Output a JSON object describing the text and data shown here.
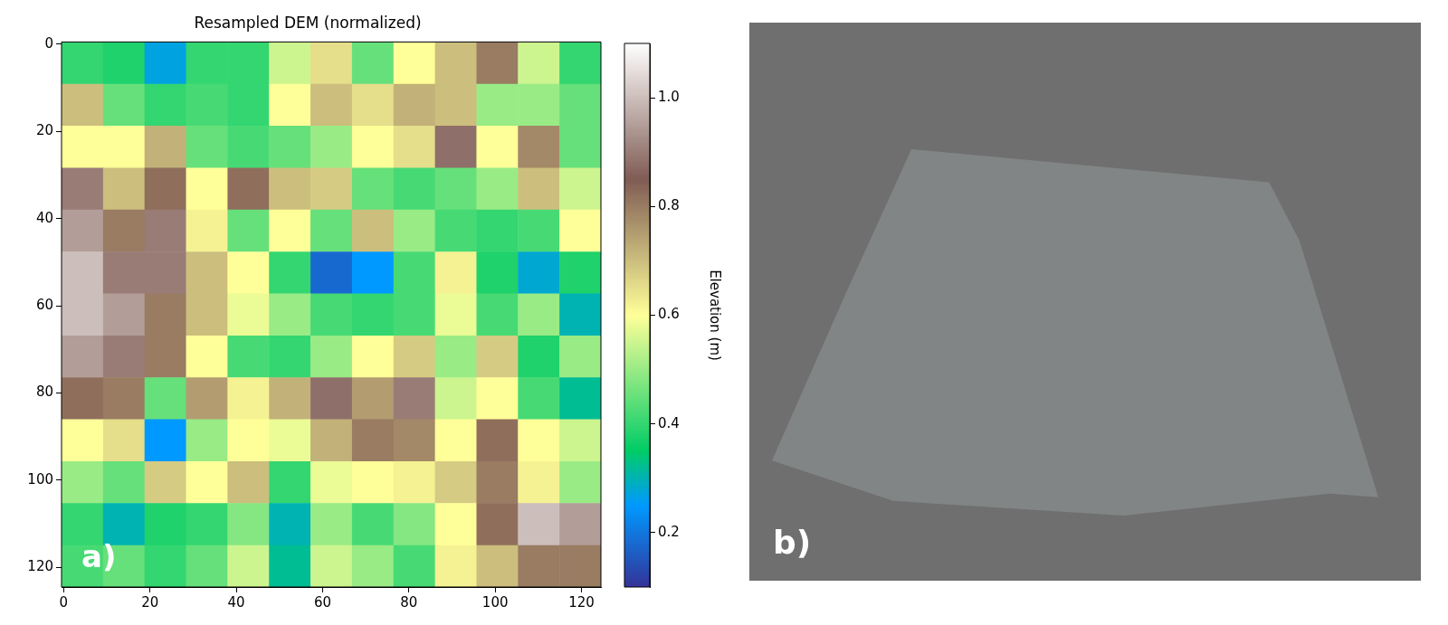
{
  "chart_data": {
    "type": "heatmap",
    "title": "Resampled DEM (normalized)",
    "clabel": "Elevation (m)",
    "xlim": [
      -0.5,
      124.5
    ],
    "xticks": [
      0,
      20,
      40,
      60,
      80,
      100,
      120
    ],
    "ylim": [
      124.5,
      -0.5
    ],
    "yticks": [
      0,
      20,
      40,
      60,
      80,
      100,
      120
    ],
    "clim": [
      0.1,
      1.1
    ],
    "cticks": [
      0.2,
      0.4,
      0.6,
      0.8,
      {
        "value": 1,
        "label": "1.0"
      }
    ],
    "annotations": [
      "a)",
      "b)"
    ],
    "cells": [
      [
        0.4,
        0.38,
        0.27,
        0.4,
        0.4,
        0.55,
        0.65,
        0.45,
        0.6,
        0.7,
        0.8,
        0.55,
        0.4
      ],
      [
        0.7,
        0.45,
        0.4,
        0.42,
        0.4,
        0.6,
        0.7,
        0.65,
        0.72,
        0.7,
        0.5,
        0.5,
        0.45
      ],
      [
        0.6,
        0.6,
        0.72,
        0.45,
        0.42,
        0.45,
        0.5,
        0.6,
        0.65,
        0.88,
        0.6,
        0.78,
        0.45
      ],
      [
        0.9,
        0.7,
        0.82,
        0.6,
        0.82,
        0.7,
        0.68,
        0.45,
        0.42,
        0.45,
        0.5,
        0.7,
        0.55
      ],
      [
        0.95,
        0.8,
        0.9,
        0.62,
        0.45,
        0.6,
        0.45,
        0.7,
        0.5,
        0.42,
        0.4,
        0.42,
        0.6
      ],
      [
        1.0,
        0.9,
        0.9,
        0.7,
        0.6,
        0.4,
        0.18,
        0.25,
        0.42,
        0.62,
        0.38,
        0.28,
        0.38
      ],
      [
        1.0,
        0.95,
        0.8,
        0.7,
        0.58,
        0.5,
        0.42,
        0.4,
        0.42,
        0.58,
        0.42,
        0.5,
        0.3
      ],
      [
        0.95,
        0.9,
        0.8,
        0.6,
        0.42,
        0.4,
        0.5,
        0.6,
        0.68,
        0.5,
        0.68,
        0.38,
        0.5
      ],
      [
        0.82,
        0.8,
        0.45,
        0.75,
        0.62,
        0.72,
        0.88,
        0.75,
        0.9,
        0.55,
        0.6,
        0.42,
        0.32
      ],
      [
        0.6,
        0.65,
        0.25,
        0.5,
        0.6,
        0.58,
        0.72,
        0.8,
        0.78,
        0.6,
        0.82,
        0.6,
        0.55
      ],
      [
        0.5,
        0.45,
        0.68,
        0.6,
        0.7,
        0.4,
        0.58,
        0.6,
        0.62,
        0.68,
        0.8,
        0.62,
        0.5
      ],
      [
        0.4,
        0.3,
        0.38,
        0.4,
        0.48,
        0.3,
        0.5,
        0.42,
        0.48,
        0.6,
        0.82,
        1.0,
        0.95
      ],
      [
        0.42,
        0.45,
        0.4,
        0.45,
        0.55,
        0.32,
        0.55,
        0.5,
        0.42,
        0.62,
        0.7,
        0.8,
        0.8
      ]
    ]
  }
}
